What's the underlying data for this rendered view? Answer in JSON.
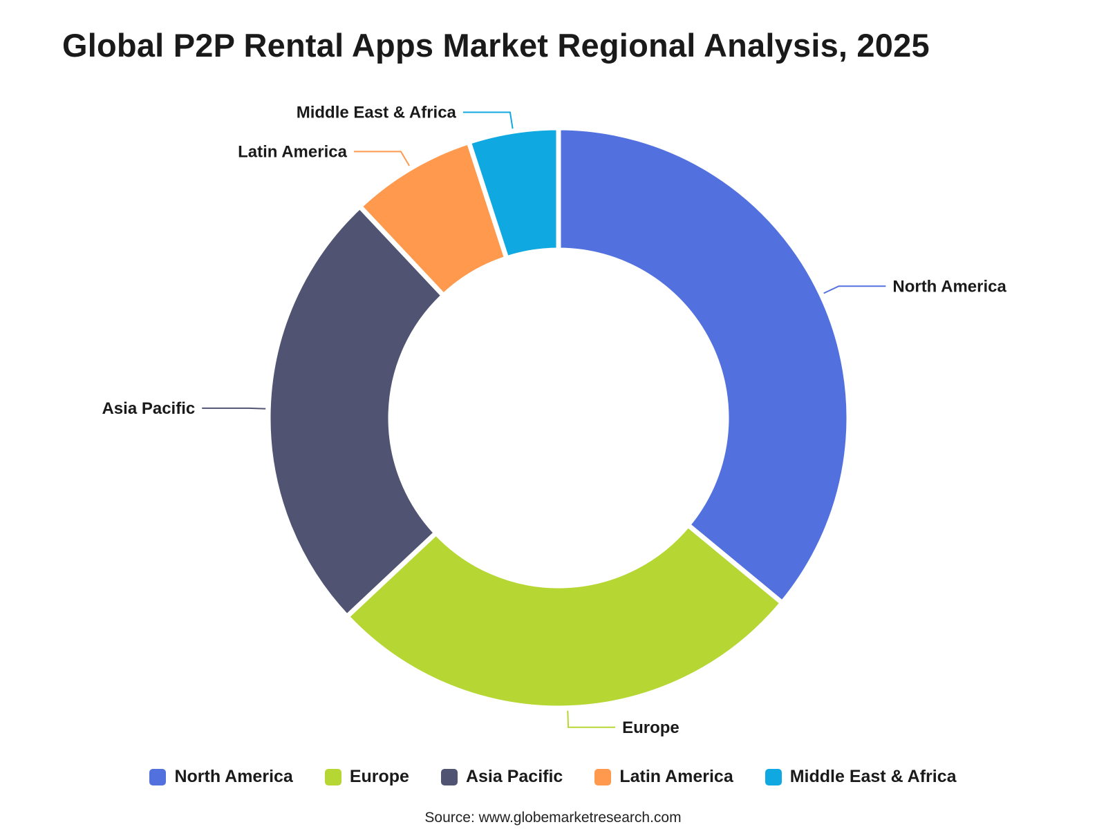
{
  "chart_data": {
    "type": "pie",
    "title": "Global P2P Rental Apps Market Regional Analysis, 2025",
    "categories": [
      "North America",
      "Europe",
      "Asia Pacific",
      "Latin America",
      "Middle East & Africa"
    ],
    "values": [
      36,
      27,
      25,
      7,
      5
    ],
    "colors": [
      "#5271df",
      "#b6d733",
      "#505372",
      "#fe994d",
      "#0fa8e0"
    ],
    "legend_position": "bottom"
  },
  "source": "Source: www.globemarketresearch.com"
}
